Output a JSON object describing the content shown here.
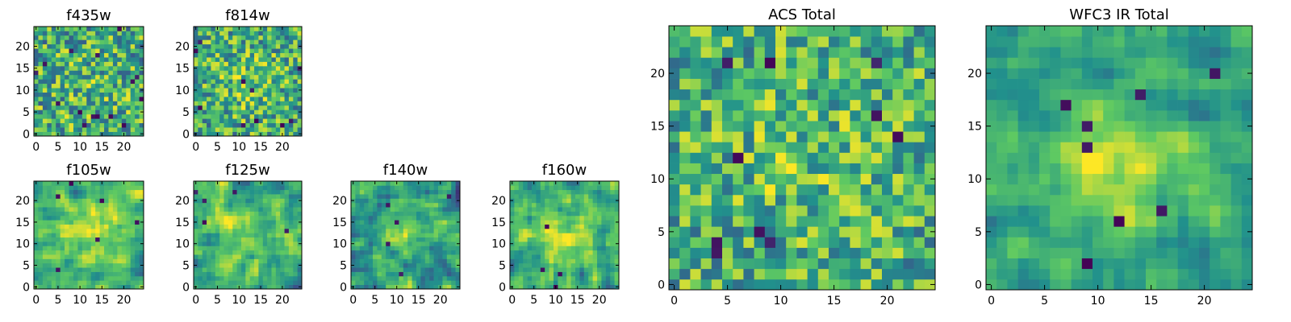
{
  "figure": {
    "grid_size": 25,
    "colormap": "viridis",
    "colormap_stops": [
      "#440154",
      "#3b528b",
      "#21918c",
      "#5ec962",
      "#fde725"
    ]
  },
  "chart_data": [
    {
      "type": "heatmap",
      "title": "f435w",
      "x": [
        0,
        24
      ],
      "y": [
        0,
        24
      ],
      "xticks": [
        0,
        5,
        10,
        15,
        20
      ],
      "yticks": [
        0,
        5,
        10,
        15,
        20
      ],
      "grid": false,
      "mean": 0.62,
      "noise": 0.34,
      "peak": 0.05,
      "spread": 6,
      "smooth": 0,
      "seed": 11,
      "dark_pixels": 16
    },
    {
      "type": "heatmap",
      "title": "f814w",
      "x": [
        0,
        24
      ],
      "y": [
        0,
        24
      ],
      "xticks": [
        0,
        5,
        10,
        15,
        20
      ],
      "yticks": [
        0,
        5,
        10,
        15,
        20
      ],
      "grid": false,
      "mean": 0.62,
      "noise": 0.32,
      "peak": 0.12,
      "spread": 5,
      "smooth": 0,
      "seed": 23,
      "dark_pixels": 10
    },
    {
      "type": "heatmap",
      "title": "f105w",
      "x": [
        0,
        24
      ],
      "y": [
        0,
        24
      ],
      "xticks": [
        0,
        5,
        10,
        15,
        20
      ],
      "yticks": [
        0,
        5,
        10,
        15,
        20
      ],
      "grid": false,
      "mean": 0.62,
      "noise": 0.3,
      "peak": 0.22,
      "spread": 6,
      "smooth": 1,
      "seed": 37,
      "dark_pixels": 6
    },
    {
      "type": "heatmap",
      "title": "f125w",
      "x": [
        0,
        24
      ],
      "y": [
        0,
        24
      ],
      "xticks": [
        0,
        5,
        10,
        15,
        20
      ],
      "yticks": [
        0,
        5,
        10,
        15,
        20
      ],
      "grid": false,
      "mean": 0.6,
      "noise": 0.32,
      "peak": 0.18,
      "spread": 6,
      "smooth": 1,
      "seed": 41,
      "dark_pixels": 5
    },
    {
      "type": "heatmap",
      "title": "f140w",
      "x": [
        0,
        24
      ],
      "y": [
        0,
        24
      ],
      "xticks": [
        0,
        5,
        10,
        15,
        20
      ],
      "yticks": [
        0,
        5,
        10,
        15,
        20
      ],
      "grid": false,
      "mean": 0.55,
      "noise": 0.34,
      "peak": 0.18,
      "spread": 5,
      "smooth": 1,
      "seed": 53,
      "dark_pixels": 5
    },
    {
      "type": "heatmap",
      "title": "f160w",
      "x": [
        0,
        24
      ],
      "y": [
        0,
        24
      ],
      "xticks": [
        0,
        5,
        10,
        15,
        20
      ],
      "yticks": [
        0,
        5,
        10,
        15,
        20
      ],
      "grid": false,
      "mean": 0.6,
      "noise": 0.32,
      "peak": 0.22,
      "spread": 6,
      "smooth": 1,
      "seed": 67,
      "dark_pixels": 4
    },
    {
      "type": "heatmap",
      "title": "ACS Total",
      "x": [
        0,
        24
      ],
      "y": [
        0,
        24
      ],
      "xticks": [
        0,
        5,
        10,
        15,
        20
      ],
      "yticks": [
        0,
        5,
        10,
        15,
        20
      ],
      "grid": false,
      "mean": 0.63,
      "noise": 0.3,
      "peak": 0.1,
      "spread": 5,
      "smooth": 0,
      "seed": 79,
      "dark_pixels": 10
    },
    {
      "type": "heatmap",
      "title": "WFC3 IR Total",
      "x": [
        0,
        24
      ],
      "y": [
        0,
        24
      ],
      "xticks": [
        0,
        5,
        10,
        15,
        20
      ],
      "yticks": [
        0,
        5,
        10,
        15,
        20
      ],
      "grid": false,
      "mean": 0.55,
      "noise": 0.24,
      "peak": 0.35,
      "spread": 5,
      "smooth": 1,
      "seed": 97,
      "dark_pixels": 8
    }
  ]
}
